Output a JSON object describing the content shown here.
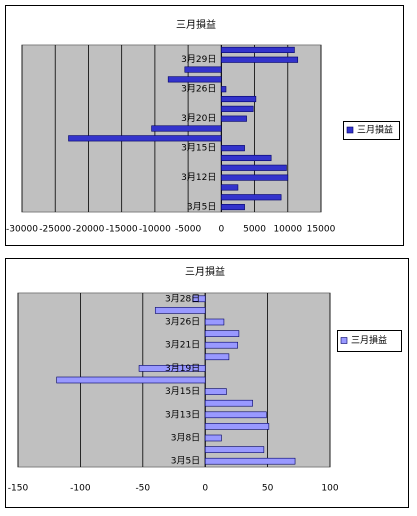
{
  "chart_data": [
    {
      "type": "bar",
      "orientation": "horizontal",
      "title": "三月損益",
      "categories": [
        "3月5日",
        null,
        null,
        "3月12日",
        null,
        null,
        "3月15日",
        null,
        null,
        "3月20日",
        null,
        null,
        "3月26日",
        null,
        null,
        "3月29日",
        null
      ],
      "series": [
        {
          "name": "三月損益",
          "color": "#3333cc",
          "values": [
            3500,
            9000,
            2500,
            10000,
            9800,
            7500,
            3500,
            -23000,
            -10500,
            3800,
            4800,
            5200,
            700,
            -8000,
            -5500,
            11500,
            11000
          ]
        }
      ],
      "xlim": [
        -30000,
        15000
      ],
      "xticks": [
        -30000,
        -25000,
        -20000,
        -15000,
        -10000,
        -5000,
        0,
        5000,
        10000,
        15000
      ],
      "grid": true,
      "legend": "right"
    },
    {
      "type": "bar",
      "orientation": "horizontal",
      "title": "三月損益",
      "categories": [
        "3月5日",
        null,
        "3月8日",
        null,
        "3月13日",
        null,
        "3月15日",
        null,
        "3月19日",
        null,
        "3月21日",
        null,
        "3月26日",
        null,
        "3月28日"
      ],
      "series": [
        {
          "name": "三月損益",
          "color": "#9999ff",
          "values": [
            72,
            47,
            13,
            51,
            49,
            38,
            17,
            -119,
            -53,
            19,
            26,
            27,
            15,
            -40,
            -10
          ]
        }
      ],
      "xlim": [
        -150,
        100
      ],
      "xticks": [
        -150,
        -100,
        -50,
        0,
        50,
        100
      ],
      "grid": true,
      "legend": "right"
    }
  ]
}
